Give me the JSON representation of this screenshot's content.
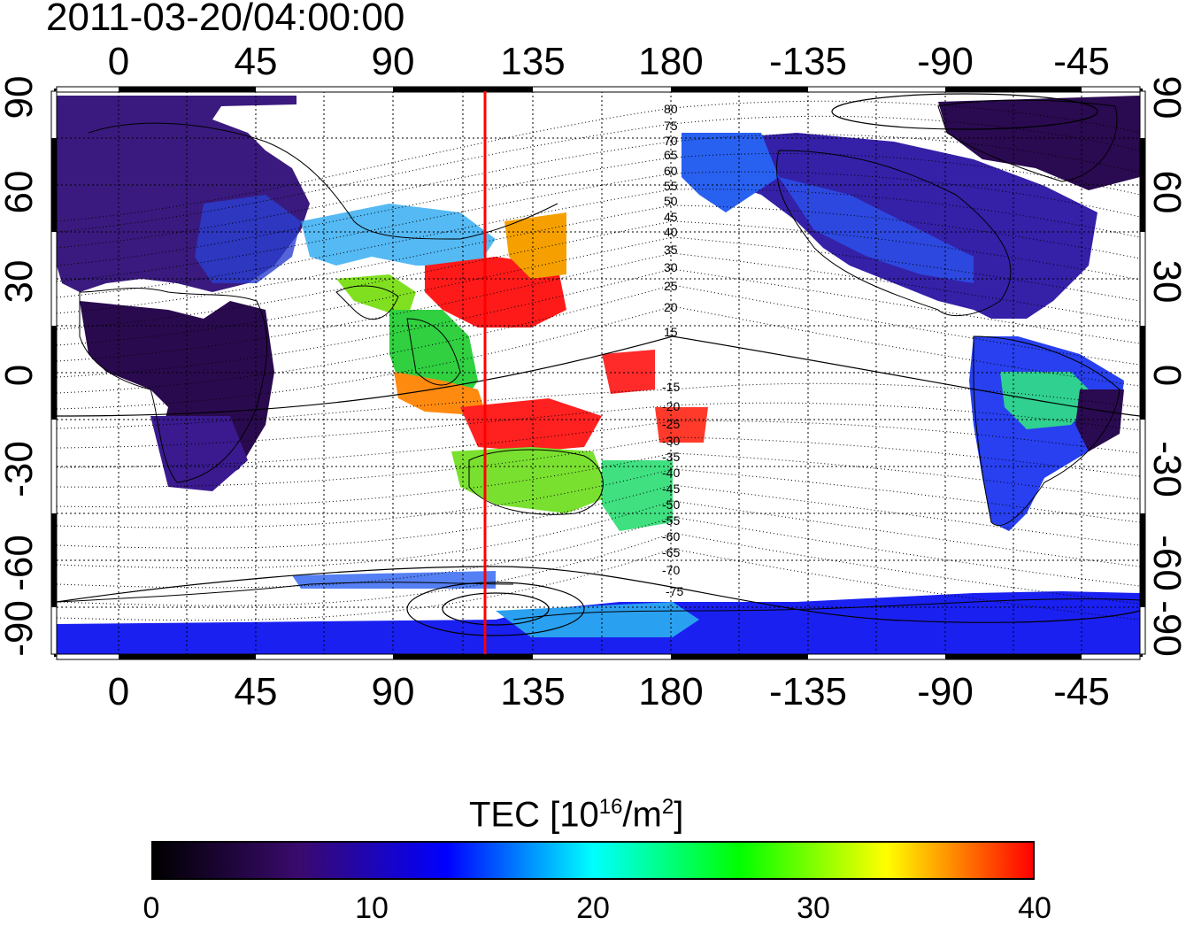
{
  "title": "2011-03-20/04:00:00",
  "map": {
    "top_longitude_ticks": [
      "0",
      "45",
      "90",
      "135",
      "180",
      "-135",
      "-90",
      "-45"
    ],
    "bottom_longitude_ticks": [
      "0",
      "45",
      "90",
      "135",
      "180",
      "-135",
      "-90",
      "-45"
    ],
    "left_latitude_ticks": [
      "90",
      "60",
      "30",
      "0",
      "-30",
      "-60",
      "-90"
    ],
    "right_latitude_ticks": [
      "90",
      "60",
      "30",
      "0",
      "-30",
      "-60",
      "-90"
    ],
    "contour_labels": [
      "80",
      "75",
      "70",
      "65",
      "60",
      "55",
      "50",
      "45",
      "40",
      "35",
      "30",
      "25",
      "20",
      "15",
      "-15",
      "-20",
      "-25",
      "-30",
      "-35",
      "-40",
      "-45",
      "-50",
      "-55",
      "-60",
      "-65",
      "-70",
      "-75"
    ],
    "meridian_marker_longitude": 120,
    "colors": {
      "meridian_marker": "#ff0000"
    }
  },
  "colorbar": {
    "label_main": "TEC  [10",
    "label_sup1": "16",
    "label_mid": "/m",
    "label_sup2": "2",
    "label_end": "]",
    "ticks": [
      "0",
      "10",
      "20",
      "30",
      "40"
    ],
    "range": [
      0,
      40
    ],
    "colormap": [
      "#000000",
      "#3a0a6e",
      "#0000ff",
      "#00ffff",
      "#00ff00",
      "#ffff00",
      "#ff0000"
    ]
  }
}
